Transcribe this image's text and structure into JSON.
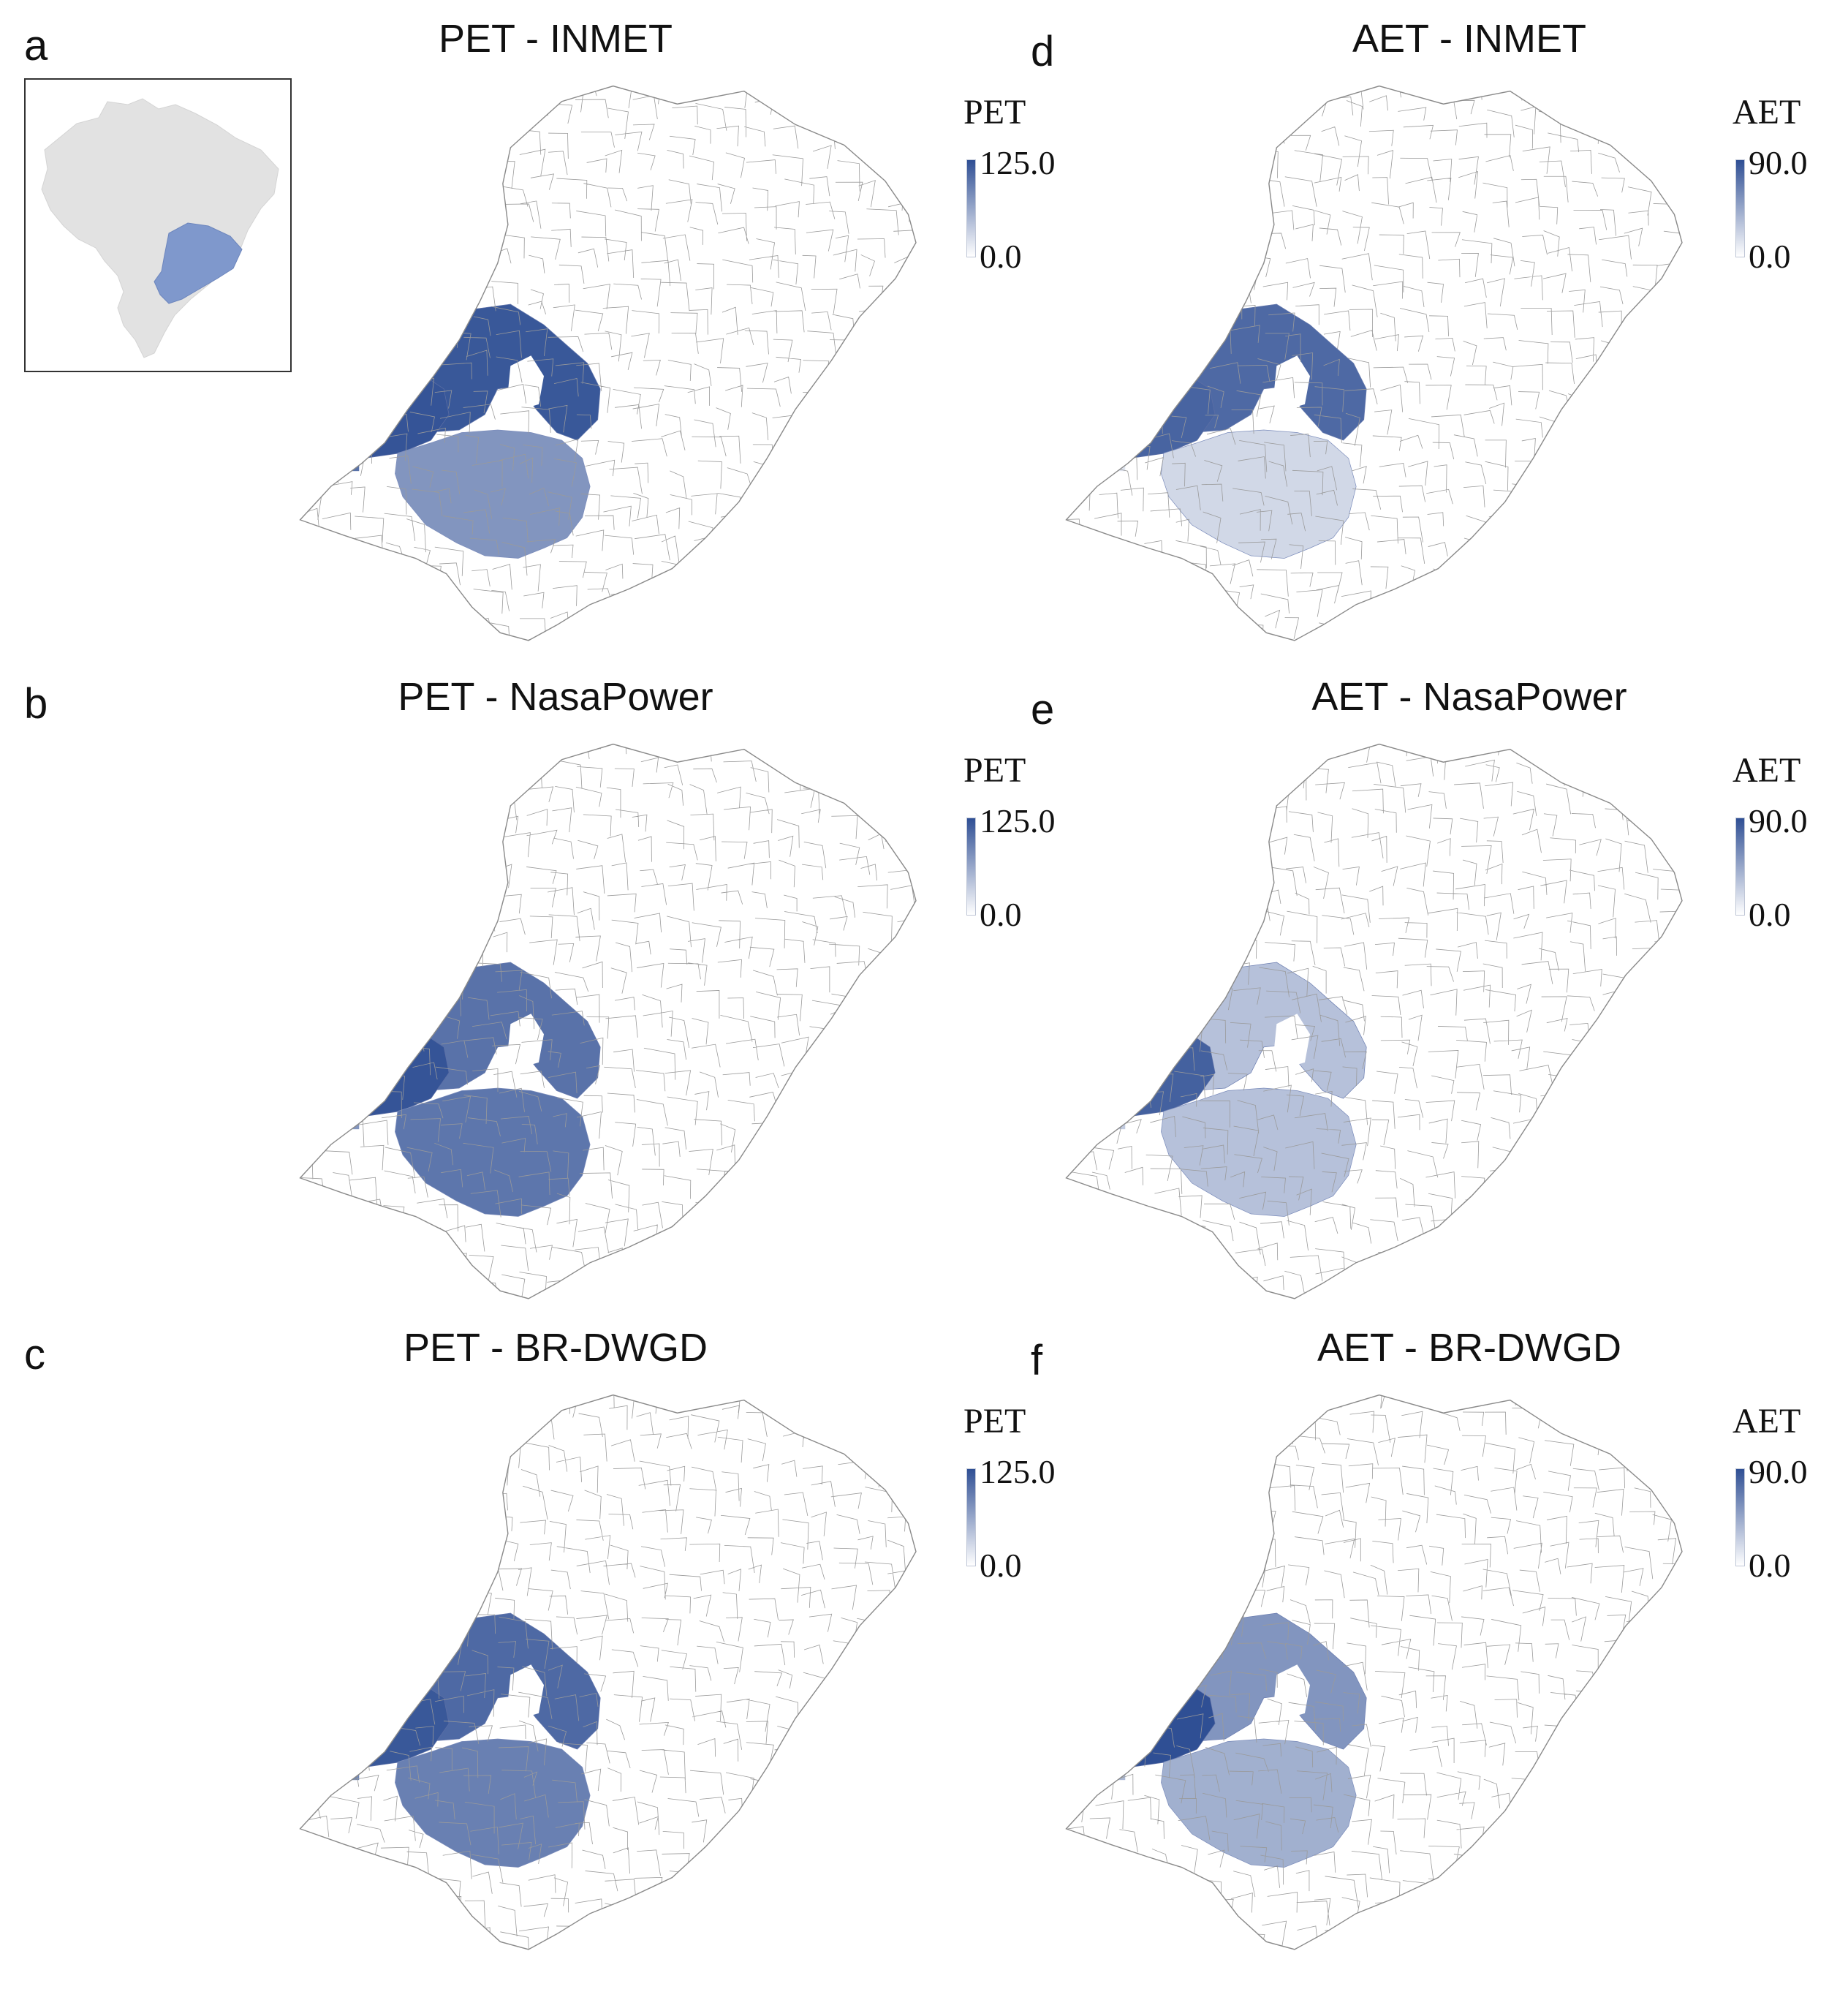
{
  "colors": {
    "ramp_low": "#ffffff",
    "ramp_high": "#2f4f94",
    "border": "#9a9a9a",
    "inset_country": "#e2e2e2",
    "inset_highlight": "#7f98cc"
  },
  "panels": [
    {
      "letter": "a",
      "title": "PET - INMET",
      "legend_title": "PET",
      "legend_max": "125.0",
      "legend_min": "0.0",
      "levels": {
        "north": 0.95,
        "west": 0.97,
        "south": 0.6,
        "dot": 0.8
      }
    },
    {
      "letter": "b",
      "title": "PET - NasaPower",
      "legend_title": "PET",
      "legend_max": "125.0",
      "legend_min": "0.0",
      "levels": {
        "north": 0.8,
        "west": 0.97,
        "south": 0.78,
        "dot": 0.6
      }
    },
    {
      "letter": "c",
      "title": "PET - BR-DWGD",
      "legend_title": "PET",
      "legend_max": "125.0",
      "legend_min": "0.0",
      "levels": {
        "north": 0.85,
        "west": 0.95,
        "south": 0.72,
        "dot": 0.7
      }
    },
    {
      "letter": "d",
      "title": "AET - INMET",
      "legend_title": "AET",
      "legend_max": "90.0",
      "legend_min": "0.0",
      "levels": {
        "north": 0.85,
        "west": 0.88,
        "south": 0.22,
        "dot": 0.15
      }
    },
    {
      "letter": "e",
      "title": "AET - NasaPower",
      "legend_title": "AET",
      "legend_max": "90.0",
      "legend_min": "0.0",
      "levels": {
        "north": 0.35,
        "west": 0.9,
        "south": 0.35,
        "dot": 0.3
      }
    },
    {
      "letter": "f",
      "title": "AET - BR-DWGD",
      "legend_title": "AET",
      "legend_max": "90.0",
      "legend_min": "0.0",
      "levels": {
        "north": 0.6,
        "west": 1.0,
        "south": 0.45,
        "dot": 0.4
      }
    }
  ]
}
